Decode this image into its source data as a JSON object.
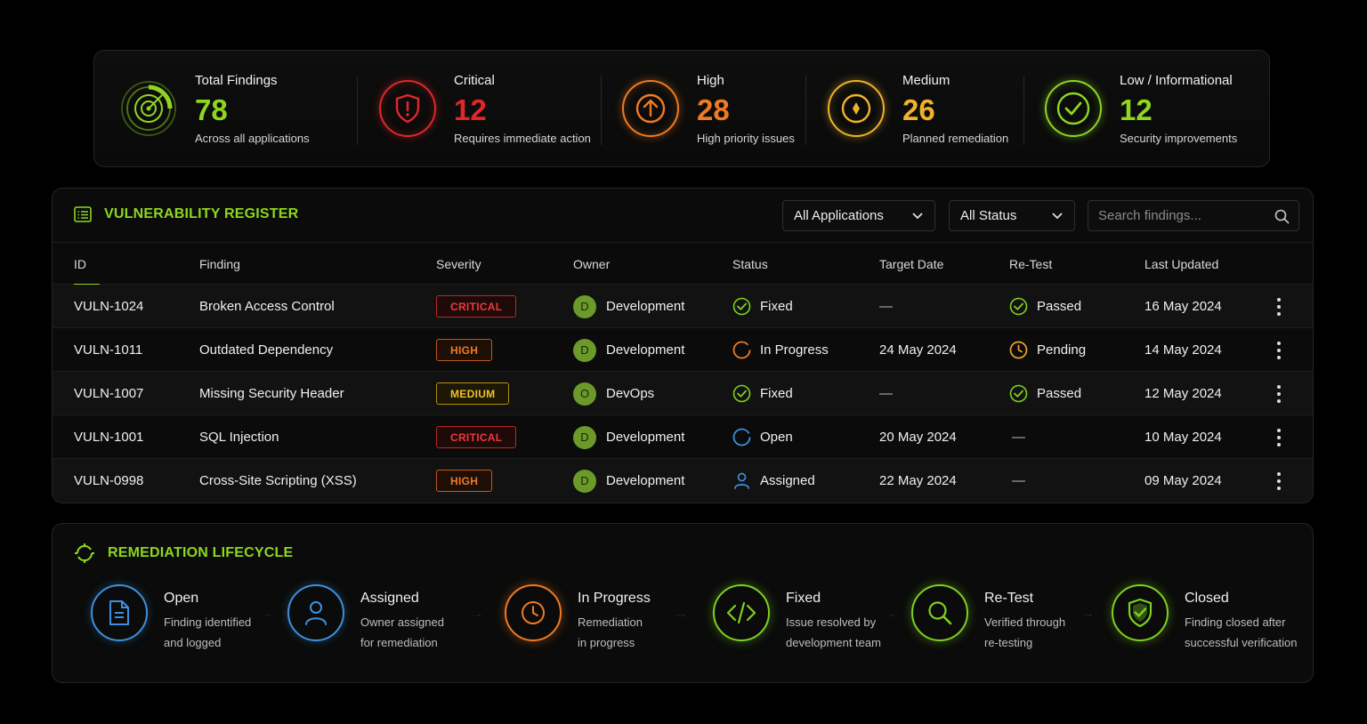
{
  "stats": [
    {
      "label": "Total Findings",
      "value": "78",
      "sub": "Across all applications",
      "color": "#8fd61f",
      "icon": "radar-icon"
    },
    {
      "label": "Critical",
      "value": "12",
      "sub": "Requires immediate action",
      "color": "#e3262a",
      "icon": "shield-alert-icon"
    },
    {
      "label": "High",
      "value": "28",
      "sub": "High priority issues",
      "color": "#f07a22",
      "icon": "arrow-up-circle-icon"
    },
    {
      "label": "Medium",
      "value": "26",
      "sub": "Planned remediation",
      "color": "#f0b22a",
      "icon": "compass-icon"
    },
    {
      "label": "Low / Informational",
      "value": "12",
      "sub": "Security improvements",
      "color": "#8fd61f",
      "icon": "check-circle-icon"
    }
  ],
  "register": {
    "title": "VULNERABILITY REGISTER",
    "filter_app": "All Applications",
    "filter_status": "All Status",
    "search_placeholder": "Search findings...",
    "columns": [
      "ID",
      "Finding",
      "Severity",
      "Owner",
      "Status",
      "Target Date",
      "Re-Test",
      "Last Updated"
    ],
    "rows": [
      {
        "id": "VULN-1024",
        "finding": "Broken Access Control",
        "severity": "CRITICAL",
        "owner_initial": "D",
        "owner": "Development",
        "status": "Fixed",
        "target": "—",
        "retest": "Passed",
        "updated": "16 May 2024"
      },
      {
        "id": "VULN-1011",
        "finding": "Outdated Dependency",
        "severity": "HIGH",
        "owner_initial": "D",
        "owner": "Development",
        "status": "In Progress",
        "target": "24 May 2024",
        "retest": "Pending",
        "updated": "14 May 2024"
      },
      {
        "id": "VULN-1007",
        "finding": "Missing Security Header",
        "severity": "MEDIUM",
        "owner_initial": "O",
        "owner": "DevOps",
        "status": "Fixed",
        "target": "—",
        "retest": "Passed",
        "updated": "12 May 2024"
      },
      {
        "id": "VULN-1001",
        "finding": "SQL Injection",
        "severity": "CRITICAL",
        "owner_initial": "D",
        "owner": "Development",
        "status": "Open",
        "target": "20 May 2024",
        "retest": "—",
        "updated": "10 May 2024"
      },
      {
        "id": "VULN-0998",
        "finding": "Cross-Site Scripting (XSS)",
        "severity": "HIGH",
        "owner_initial": "D",
        "owner": "Development",
        "status": "Assigned",
        "target": "22 May 2024",
        "retest": "—",
        "updated": "09 May 2024"
      }
    ]
  },
  "lifecycle": {
    "title": "REMEDIATION LIFECYCLE",
    "steps": [
      {
        "name": "Open",
        "desc": "Finding identified and logged",
        "color": "#3f8fe0",
        "icon": "document-icon"
      },
      {
        "name": "Assigned",
        "desc": "Owner assigned for remediation",
        "color": "#3f8fe0",
        "icon": "user-icon"
      },
      {
        "name": "In Progress",
        "desc": "Remediation in progress",
        "color": "#f07a22",
        "icon": "clock-icon"
      },
      {
        "name": "Fixed",
        "desc": "Issue resolved by development team",
        "color": "#7fd020",
        "icon": "code-icon"
      },
      {
        "name": "Re-Test",
        "desc": "Verified through re-testing",
        "color": "#7fd020",
        "icon": "search-icon"
      },
      {
        "name": "Closed",
        "desc": "Finding closed after successful verification",
        "color": "#7fd020",
        "icon": "shield-check-icon"
      }
    ]
  }
}
